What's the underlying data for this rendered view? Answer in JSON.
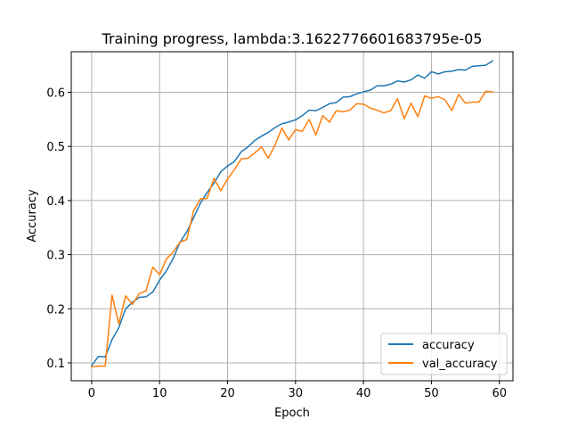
{
  "chart_data": {
    "type": "line",
    "title": "Training progress, lambda:3.1622776601683795e-05",
    "xlabel": "Epoch",
    "ylabel": "Accuracy",
    "xlim": [
      -3,
      62
    ],
    "ylim": [
      0.067,
      0.675
    ],
    "xticks": [
      0,
      10,
      20,
      30,
      40,
      50,
      60
    ],
    "xtick_labels": [
      "0",
      "10",
      "20",
      "30",
      "40",
      "50",
      "60"
    ],
    "yticks": [
      0.1,
      0.2,
      0.3,
      0.4,
      0.5,
      0.6
    ],
    "ytick_labels": [
      "0.1",
      "0.2",
      "0.3",
      "0.4",
      "0.5",
      "0.6"
    ],
    "grid": true,
    "legend_placement": "lower right",
    "x": [
      0,
      1,
      2,
      3,
      4,
      5,
      6,
      7,
      8,
      9,
      10,
      11,
      12,
      13,
      14,
      15,
      16,
      17,
      18,
      19,
      20,
      21,
      22,
      23,
      24,
      25,
      26,
      27,
      28,
      29,
      30,
      31,
      32,
      33,
      34,
      35,
      36,
      37,
      38,
      39,
      40,
      41,
      42,
      43,
      44,
      45,
      46,
      47,
      48,
      49,
      50,
      51,
      52,
      53,
      54,
      55,
      56,
      57,
      58,
      59
    ],
    "series": [
      {
        "name": "accuracy",
        "color": "#1f77b4",
        "values": [
          0.095,
          0.112,
          0.111,
          0.143,
          0.165,
          0.2,
          0.212,
          0.221,
          0.222,
          0.231,
          0.253,
          0.27,
          0.293,
          0.323,
          0.342,
          0.368,
          0.395,
          0.415,
          0.432,
          0.453,
          0.464,
          0.472,
          0.49,
          0.499,
          0.511,
          0.519,
          0.526,
          0.535,
          0.542,
          0.545,
          0.549,
          0.557,
          0.567,
          0.566,
          0.572,
          0.579,
          0.581,
          0.591,
          0.592,
          0.597,
          0.601,
          0.604,
          0.612,
          0.612,
          0.615,
          0.621,
          0.619,
          0.623,
          0.632,
          0.626,
          0.638,
          0.634,
          0.638,
          0.639,
          0.642,
          0.641,
          0.648,
          0.649,
          0.65,
          0.658
        ]
      },
      {
        "name": "val_accuracy",
        "color": "#ff7f0e",
        "values": [
          0.093,
          0.094,
          0.094,
          0.225,
          0.172,
          0.224,
          0.208,
          0.228,
          0.233,
          0.277,
          0.263,
          0.292,
          0.305,
          0.323,
          0.328,
          0.381,
          0.403,
          0.404,
          0.441,
          0.418,
          0.44,
          0.457,
          0.477,
          0.478,
          0.488,
          0.499,
          0.478,
          0.503,
          0.534,
          0.512,
          0.531,
          0.528,
          0.55,
          0.521,
          0.557,
          0.545,
          0.566,
          0.564,
          0.567,
          0.579,
          0.578,
          0.571,
          0.567,
          0.562,
          0.566,
          0.588,
          0.551,
          0.58,
          0.555,
          0.593,
          0.589,
          0.592,
          0.586,
          0.566,
          0.596,
          0.58,
          0.582,
          0.582,
          0.602,
          0.601
        ]
      }
    ]
  }
}
